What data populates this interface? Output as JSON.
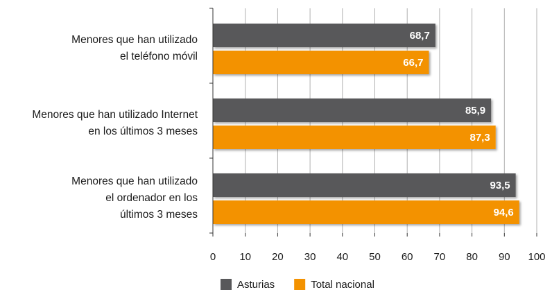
{
  "chart_data": {
    "type": "bar",
    "orientation": "horizontal",
    "categories": [
      "Menores que han utilizado\nel teléfono móvil",
      "Menores que han utilizado Internet\nen los  últimos 3 meses",
      "Menores que han utilizado\nel ordenador en los\núltimos 3 meses"
    ],
    "series": [
      {
        "name": "Asturias",
        "color": "#58585a",
        "values": [
          68.7,
          85.9,
          93.5
        ],
        "value_labels": [
          "68,7",
          "85,9",
          "93,5"
        ]
      },
      {
        "name": "Total nacional",
        "color": "#f39200",
        "values": [
          66.7,
          87.3,
          94.6
        ],
        "value_labels": [
          "66,7",
          "87,3",
          "94,6"
        ]
      }
    ],
    "xlim": [
      0,
      100
    ],
    "xticks": [
      0,
      10,
      20,
      30,
      40,
      50,
      60,
      70,
      80,
      90,
      100
    ],
    "grid": true,
    "legend": "bottom"
  }
}
